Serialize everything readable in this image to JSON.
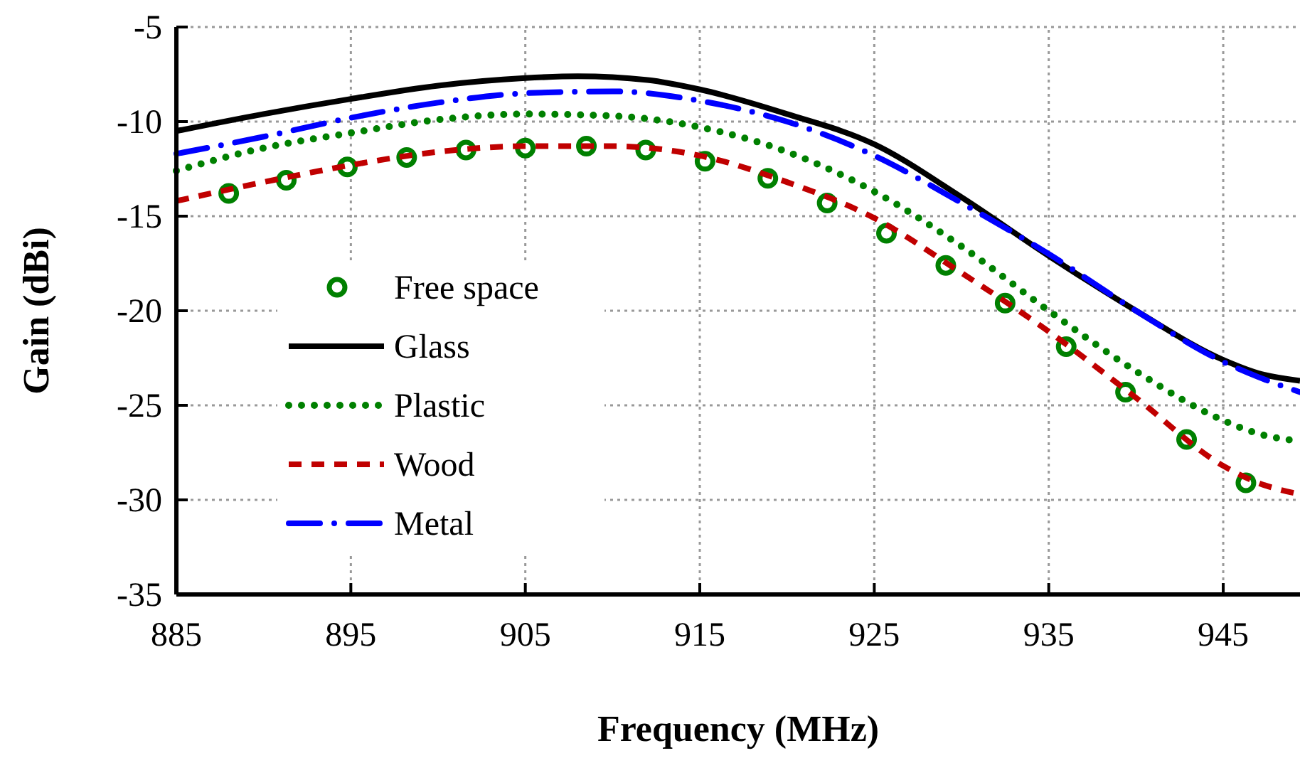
{
  "chart_data": {
    "type": "line",
    "xlabel": "Frequency (MHz)",
    "ylabel": "Gain (dBi)",
    "xlim": [
      885,
      949.4
    ],
    "xticks": [
      885,
      895,
      905,
      915,
      925,
      935,
      945
    ],
    "ylim": [
      -35,
      -5
    ],
    "yticks": [
      -35,
      -30,
      -25,
      -20,
      -15,
      -10,
      -5
    ],
    "grid": true,
    "legend": "left",
    "series": [
      {
        "name": "Free space",
        "type": "scatter",
        "marker": "circle",
        "color": "#008000",
        "x": [
          888,
          891.3,
          894.8,
          898.2,
          901.6,
          905,
          908.5,
          911.9,
          915.3,
          918.9,
          922.3,
          925.7,
          929.1,
          932.5,
          936,
          939.4,
          942.9,
          946.3
        ],
        "values": [
          -13.8,
          -13.1,
          -12.4,
          -11.9,
          -11.5,
          -11.4,
          -11.3,
          -11.5,
          -12.1,
          -13.0,
          -14.3,
          -15.9,
          -17.6,
          -19.6,
          -21.9,
          -24.3,
          -26.8,
          -29.1
        ]
      },
      {
        "name": "Glass",
        "line_style": "solid",
        "color": "#000000",
        "x": [
          885,
          890,
          895,
          900,
          905,
          908,
          912,
          915,
          920,
          925,
          930,
          935,
          940,
          945,
          947,
          949.4
        ],
        "values": [
          -10.5,
          -9.6,
          -8.8,
          -8.1,
          -7.7,
          -7.6,
          -7.8,
          -8.3,
          -9.6,
          -11.2,
          -14.0,
          -17.1,
          -20.0,
          -22.6,
          -23.3,
          -23.7
        ]
      },
      {
        "name": "Plastic",
        "line_style": "dotted",
        "color": "#008000",
        "x": [
          885,
          890,
          895,
          900,
          905,
          910,
          915,
          920,
          925,
          930,
          935,
          940,
          945,
          947,
          949.4
        ],
        "values": [
          -12.6,
          -11.4,
          -10.6,
          -9.9,
          -9.6,
          -9.7,
          -10.3,
          -11.6,
          -13.7,
          -16.6,
          -20.0,
          -23.2,
          -25.8,
          -26.5,
          -26.9
        ]
      },
      {
        "name": "Wood",
        "line_style": "dashed",
        "color": "#c00000",
        "x": [
          885,
          890,
          895,
          900,
          905,
          910,
          915,
          920,
          925,
          930,
          935,
          940,
          945,
          947,
          949.4
        ],
        "values": [
          -14.2,
          -13.2,
          -12.3,
          -11.6,
          -11.3,
          -11.3,
          -11.8,
          -13.2,
          -15.1,
          -18.0,
          -21.1,
          -24.6,
          -28.2,
          -29.1,
          -29.7
        ]
      },
      {
        "name": "Metal",
        "line_style": "dashdot",
        "color": "#0000ff",
        "x": [
          885,
          890,
          895,
          900,
          905,
          910,
          915,
          920,
          925,
          930,
          935,
          940,
          945,
          947,
          949.4
        ],
        "values": [
          -11.7,
          -10.8,
          -9.8,
          -9.0,
          -8.5,
          -8.4,
          -8.9,
          -10.0,
          -11.8,
          -14.3,
          -17.0,
          -20.0,
          -22.7,
          -23.5,
          -24.3
        ]
      }
    ]
  }
}
